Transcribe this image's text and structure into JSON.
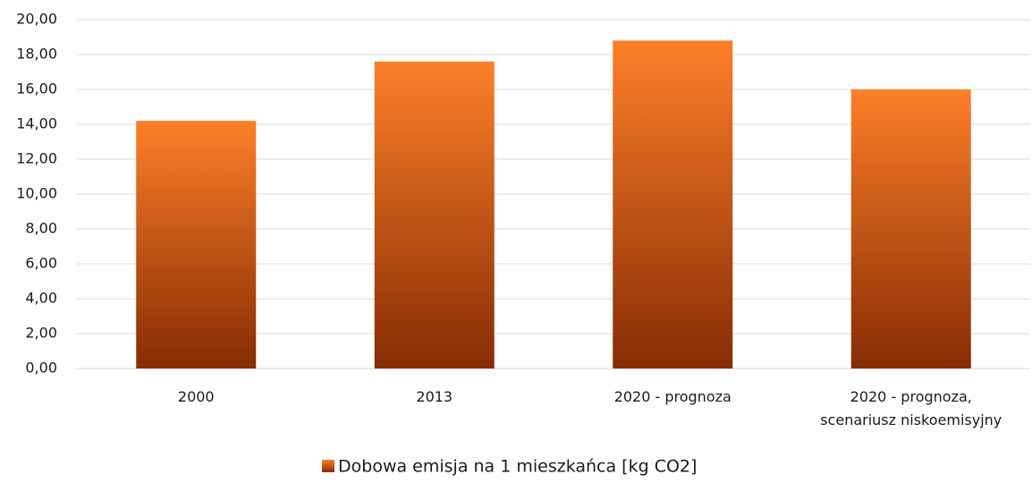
{
  "chart_data": {
    "type": "bar",
    "categories": [
      "2000",
      "2013",
      "2020 - prognoza",
      "2020 - prognoza,\nscenariusz niskoemisyjny"
    ],
    "series": [
      {
        "name": "Dobowa emisja na 1 mieszkańca [kg CO2]",
        "color": [
          "#fd7f29",
          "#862c04"
        ],
        "values": [
          14.2,
          17.6,
          18.8,
          16.0
        ]
      }
    ],
    "ylim": [
      0,
      20
    ],
    "yticks": [
      {
        "value": 0,
        "label": "0,00"
      },
      {
        "value": 2,
        "label": "2,00"
      },
      {
        "value": 4,
        "label": "4,00"
      },
      {
        "value": 6,
        "label": "6,00"
      },
      {
        "value": 8,
        "label": "8,00"
      },
      {
        "value": 10,
        "label": "10,00"
      },
      {
        "value": 12,
        "label": "12,00"
      },
      {
        "value": 14,
        "label": "14,00"
      },
      {
        "value": 16,
        "label": "16,00"
      },
      {
        "value": 18,
        "label": "18,00"
      },
      {
        "value": 20,
        "label": "20,00"
      }
    ],
    "grid": true,
    "legend": "bottom"
  }
}
